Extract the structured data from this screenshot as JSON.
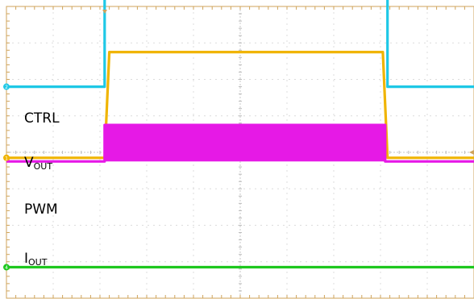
{
  "chart_data": {
    "type": "line",
    "title": "",
    "xlabel": "",
    "ylabel": "",
    "grid": true,
    "x_divisions": 10,
    "y_divisions": 8,
    "series": [
      {
        "name": "CTRL",
        "label_main": "CTRL",
        "label_sub": "",
        "marker": "2",
        "color": "#1ec8e6",
        "x": [
          0,
          2.1,
          2.1,
          8.15,
          8.15,
          10
        ],
        "y": [
          5.8,
          5.8,
          8.25,
          8.25,
          5.8,
          5.8
        ]
      },
      {
        "name": "VOUT",
        "label_main": "V",
        "label_sub": "OUT",
        "marker": "1",
        "color": "#f0b400",
        "x": [
          0,
          2.1,
          2.2,
          8.05,
          8.15,
          10
        ],
        "y": [
          3.85,
          3.85,
          6.75,
          6.75,
          3.85,
          3.85
        ]
      },
      {
        "name": "PWM",
        "label_main": "PWM",
        "label_sub": "",
        "marker": "",
        "color": "#e619e6",
        "x": [
          0,
          2.1,
          2.1,
          8.1,
          8.1,
          10
        ],
        "y": [
          3.75,
          3.75,
          4.75,
          4.75,
          3.75,
          3.75
        ]
      },
      {
        "name": "IOUT",
        "label_main": "I",
        "label_sub": "OUT",
        "marker": "4",
        "color": "#1ec81e",
        "x": [
          0,
          10
        ],
        "y": [
          0.85,
          0.85
        ]
      }
    ]
  }
}
